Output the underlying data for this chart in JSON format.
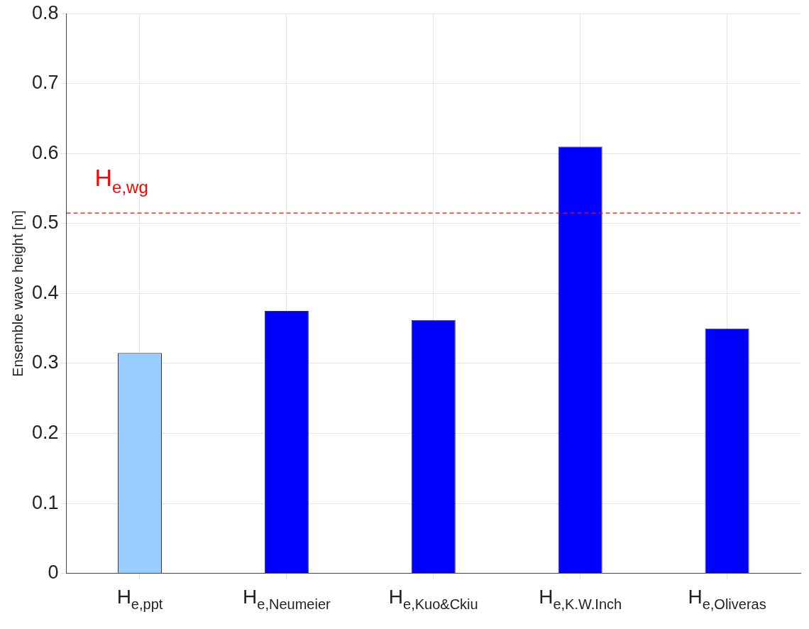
{
  "chart_data": {
    "type": "bar",
    "ylabel": "Ensemble wave height [m]",
    "categories": [
      "H$_{e,ppt}$",
      "H$_{e,Neumeier}$",
      "H$_{e,Kuo&Ckiu}$",
      "H$_{e,K.W.Inch}$",
      "H$_{e,Oliveras}$"
    ],
    "values": [
      0.315,
      0.375,
      0.362,
      0.61,
      0.35
    ],
    "colors": [
      "#99ccff",
      "#0000ff",
      "#0000ff",
      "#0000ff",
      "#0000ff"
    ],
    "ylim": [
      0,
      0.8
    ],
    "yticks": [
      0,
      0.1,
      0.2,
      0.3,
      0.4,
      0.5,
      0.6,
      0.7,
      0.8
    ],
    "ref_lines": [
      {
        "axis": "y",
        "value": 0.515,
        "label": "H$_{e,wg}$",
        "color": "#ff0000",
        "line_style": "dashed"
      }
    ],
    "grid": true,
    "legend": false
  }
}
